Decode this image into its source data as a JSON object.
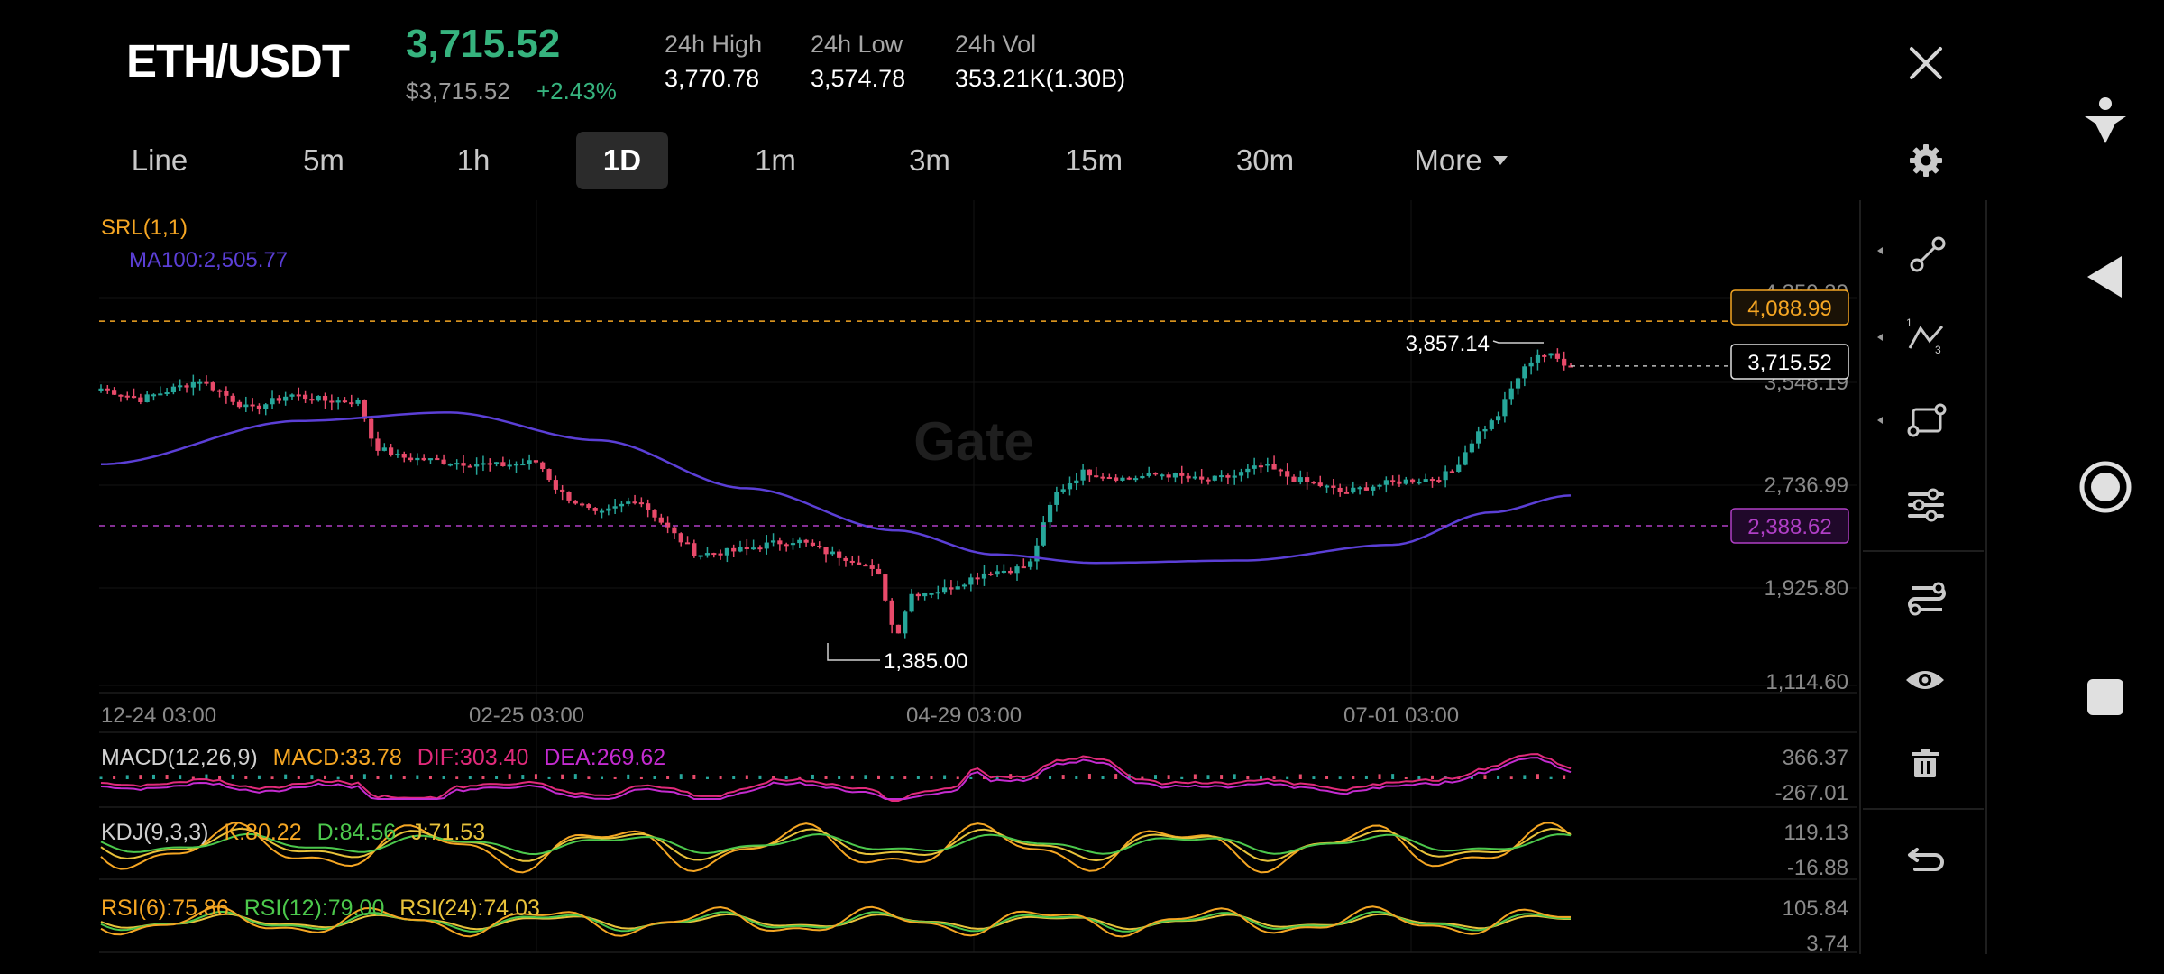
{
  "header": {
    "pair": "ETH/USDT",
    "price": "3,715.52",
    "price_usd": "$3,715.52",
    "change": "+2.43%",
    "stats": [
      {
        "label": "24h High",
        "value": "3,770.78"
      },
      {
        "label": "24h Low",
        "value": "3,574.78"
      },
      {
        "label": "24h Vol",
        "value": "353.21K(1.30B)"
      }
    ]
  },
  "timeframes": [
    "Line",
    "5m",
    "1h",
    "1D",
    "1m",
    "3m",
    "15m",
    "30m"
  ],
  "active_timeframe": "1D",
  "more_label": "More",
  "chart": {
    "srl_label": "SRL(1,1)",
    "ma_label": "MA100:2,505.77",
    "watermark": "Gate",
    "y_ticks": [
      "4,359.39",
      "3,548.19",
      "2,736.99",
      "1,925.80",
      "1,114.60"
    ],
    "x_ticks": [
      "12-24 03:00",
      "02-25 03:00",
      "04-29 03:00",
      "07-01 03:00"
    ],
    "srl_upper": "4,088.99",
    "current_price": "3,715.52",
    "srl_lower": "2,388.62",
    "high_marker": "3,857.14",
    "low_marker": "1,385.00"
  },
  "indicators": {
    "macd": {
      "name": "MACD(12,26,9)",
      "macd": "MACD:33.78",
      "dif": "DIF:303.40",
      "dea": "DEA:269.62",
      "top": "366.37",
      "bottom": "-267.01"
    },
    "kdj": {
      "name": "KDJ(9,3,3)",
      "k": "K:80.22",
      "d": "D:84.56",
      "j": "J:71.53",
      "top": "119.13",
      "bottom": "-16.88"
    },
    "rsi": {
      "r6": "RSI(6):75.86",
      "r12": "RSI(12):79.00",
      "r24": "RSI(24):74.03",
      "top": "105.84",
      "bottom": "3.74"
    }
  },
  "colors": {
    "up": "#26a69a",
    "down": "#e84a6a",
    "ma100": "#5b3fd6",
    "srl_upper": "#f5a623",
    "srl_lower": "#b03fc6",
    "price_green": "#36b37e"
  },
  "toolbar_icons": [
    "trend-line-icon",
    "fib-icon",
    "rectangle-icon",
    "indicator-settings-icon",
    "compare-icon",
    "visibility-icon",
    "delete-icon",
    "undo-icon"
  ],
  "nav_icons": [
    "accessibility-icon",
    "back-icon",
    "home-icon",
    "recents-icon"
  ]
}
